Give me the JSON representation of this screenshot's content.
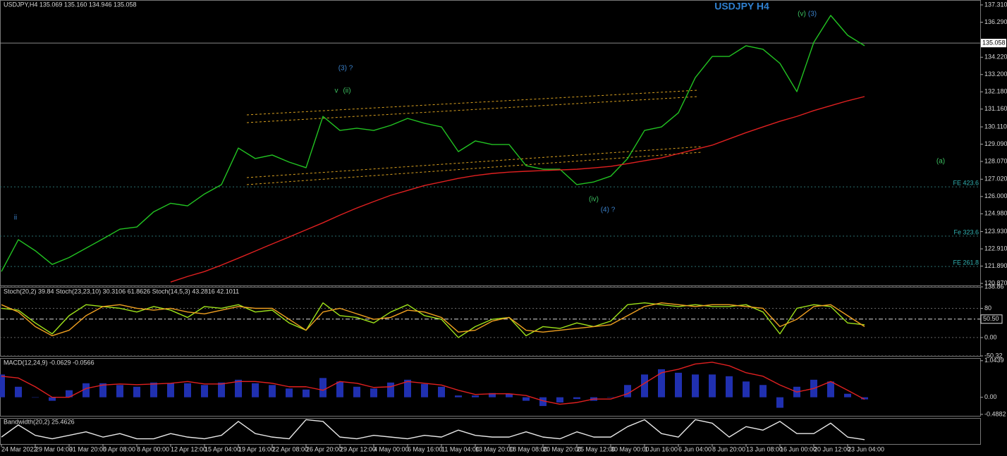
{
  "chart_data": [
    {
      "type": "line",
      "title": "USDJPY H4",
      "subtitle": "USDJPY,H4  135.069 135.160 134.946 135.058",
      "categories": [
        "24 Mar 2022",
        null,
        "29 Mar 04:00",
        null,
        "31 Mar 20:00",
        null,
        "5 Apr 08:00",
        null,
        "8 Apr 00:00",
        null,
        "12 Apr 12:00",
        null,
        "15 Apr 04:00",
        null,
        "19 Apr 16:00",
        null,
        "22 Apr 08:00",
        null,
        "26 Apr 20:00",
        null,
        "29 Apr 12:00",
        null,
        "4 May 00:00",
        null,
        "6 May 16:00",
        null,
        "11 May 04:00",
        null,
        "13 May 20:00",
        null,
        "18 May 08:00",
        null,
        "20 May 20:00",
        null,
        "25 May 12:00",
        null,
        "30 May 00:00",
        null,
        "1 Jun 16:00",
        null,
        "6 Jun 04:00",
        null,
        "8 Jun 20:00",
        null,
        "13 Jun 08:00",
        null,
        "16 Jun 00:00",
        null,
        "20 Jun 12:00",
        null,
        "23 Jun 04:00",
        null
      ],
      "series": [
        {
          "color": "#22c322",
          "kind": "line",
          "values": [
            121.57,
            123.45,
            122.8,
            121.99,
            122.4,
            122.95,
            123.5,
            124.07,
            124.2,
            125.1,
            125.6,
            125.45,
            126.15,
            126.7,
            128.86,
            128.24,
            128.45,
            128.03,
            127.7,
            130.73,
            129.9,
            130.03,
            129.9,
            130.2,
            130.61,
            130.32,
            130.11,
            128.65,
            129.28,
            129.07,
            129.07,
            127.82,
            127.61,
            127.61,
            126.7,
            126.86,
            127.2,
            128.24,
            129.9,
            130.11,
            130.94,
            133.02,
            134.27,
            134.27,
            134.9,
            134.69,
            133.86,
            132.19,
            135.1,
            136.69,
            135.52,
            134.9
          ]
        },
        {
          "color": "#e02020",
          "kind": "line",
          "values": [
            null,
            null,
            null,
            null,
            null,
            null,
            null,
            null,
            null,
            null,
            120.95,
            121.28,
            121.57,
            121.95,
            122.36,
            122.78,
            123.2,
            123.61,
            124.03,
            124.45,
            124.9,
            125.32,
            125.7,
            126.07,
            126.36,
            126.65,
            126.86,
            127.07,
            127.24,
            127.36,
            127.44,
            127.49,
            127.53,
            127.57,
            127.61,
            127.69,
            127.78,
            127.94,
            128.11,
            128.28,
            128.53,
            128.78,
            129.03,
            129.4,
            129.77,
            130.11,
            130.44,
            130.73,
            131.07,
            131.36,
            131.65,
            131.9
          ]
        }
      ],
      "ylim": [
        120.75,
        137.6
      ],
      "yticks": [
        {
          "value": 137.31,
          "label": "137.310"
        },
        {
          "value": 136.29,
          "label": "136.290"
        },
        {
          "value": 134.22,
          "label": "134.220"
        },
        {
          "value": 133.2,
          "label": "133.200"
        },
        {
          "value": 132.18,
          "label": "132.180"
        },
        {
          "value": 131.16,
          "label": "131.160"
        },
        {
          "value": 130.11,
          "label": "130.110"
        },
        {
          "value": 129.09,
          "label": "129.090"
        },
        {
          "value": 128.07,
          "label": "128.070"
        },
        {
          "value": 127.02,
          "label": "127.020"
        },
        {
          "value": 126.0,
          "label": "126.000"
        },
        {
          "value": 124.98,
          "label": "124.980"
        },
        {
          "value": 123.93,
          "label": "123.930"
        },
        {
          "value": 122.91,
          "label": "122.910"
        },
        {
          "value": 121.89,
          "label": "121.890"
        },
        {
          "value": 120.87,
          "label": "120.870"
        }
      ],
      "price_line": 135.058,
      "levels": [
        {
          "label": "FE 423.6",
          "value": 126.57
        },
        {
          "label": "Fe 323.6",
          "value": 123.66
        },
        {
          "label": "FE 261.8",
          "value": 121.87
        }
      ],
      "annotations": [
        "(3) ?",
        "v",
        "(ii)",
        "(v)",
        "(3)",
        "(iv)",
        "(4) ?",
        "(a)",
        "ii"
      ]
    },
    {
      "type": "line",
      "header": "Stoch(20,2) 39.84  Stoch(23,23,10) 30.3106 61.8626  Stoch(14,5,3) 43.2816 42.1011",
      "series": [
        {
          "color": "#9ee21a",
          "kind": "line",
          "values": [
            80,
            75,
            40,
            10,
            60,
            90,
            85,
            80,
            70,
            85,
            75,
            55,
            85,
            80,
            90,
            70,
            75,
            40,
            20,
            95,
            60,
            55,
            40,
            70,
            90,
            60,
            50,
            0,
            30,
            50,
            55,
            5,
            30,
            25,
            40,
            30,
            45,
            90,
            95,
            90,
            85,
            90,
            85,
            85,
            90,
            70,
            10,
            80,
            90,
            85,
            40,
            35
          ]
        },
        {
          "color": "#f0a020",
          "kind": "line",
          "values": [
            90,
            70,
            30,
            5,
            20,
            60,
            85,
            90,
            80,
            75,
            80,
            70,
            65,
            75,
            85,
            80,
            80,
            50,
            20,
            70,
            80,
            65,
            50,
            55,
            75,
            70,
            55,
            15,
            20,
            45,
            55,
            20,
            15,
            20,
            25,
            30,
            35,
            60,
            85,
            95,
            90,
            85,
            90,
            90,
            85,
            80,
            30,
            50,
            85,
            90,
            60,
            30
          ]
        }
      ],
      "ylim": [
        -50.32,
        138.86
      ],
      "yticks": [
        138.86,
        80,
        {
          "value": 0,
          "label": "0.00"
        },
        -50.32
      ],
      "current": {
        "value": 50.5,
        "label": "50.50"
      },
      "grid": true
    },
    {
      "type": "line",
      "header": "MACD(12,24,9) -0.0629 -0.0566",
      "series": [
        {
          "color": "#2030b0",
          "kind": "bar",
          "values": [
            0.65,
            0.3,
            0.0,
            -0.1,
            0.2,
            0.4,
            0.4,
            0.35,
            0.3,
            0.42,
            0.4,
            0.4,
            0.35,
            0.42,
            0.5,
            0.4,
            0.35,
            0.25,
            0.22,
            0.55,
            0.45,
            0.3,
            0.25,
            0.42,
            0.5,
            0.38,
            0.3,
            0.05,
            0.05,
            0.12,
            0.1,
            -0.1,
            -0.25,
            -0.15,
            -0.05,
            -0.1,
            0.0,
            0.35,
            0.65,
            0.8,
            0.7,
            0.65,
            0.65,
            0.6,
            0.45,
            0.35,
            -0.3,
            0.3,
            0.5,
            0.45,
            0.1,
            -0.06
          ]
        },
        {
          "color": "#e02020",
          "kind": "line",
          "values": [
            0.6,
            0.55,
            0.3,
            0.0,
            0.0,
            0.25,
            0.35,
            0.38,
            0.36,
            0.38,
            0.4,
            0.45,
            0.38,
            0.38,
            0.45,
            0.45,
            0.4,
            0.3,
            0.3,
            0.2,
            0.45,
            0.4,
            0.28,
            0.3,
            0.45,
            0.4,
            0.35,
            0.2,
            0.08,
            0.1,
            0.1,
            0.05,
            -0.1,
            -0.2,
            -0.15,
            -0.05,
            -0.05,
            0.1,
            0.4,
            0.7,
            0.8,
            0.95,
            1.0,
            0.9,
            0.7,
            0.6,
            0.35,
            0.15,
            0.25,
            0.45,
            0.2,
            -0.06
          ]
        }
      ],
      "ylim": [
        -0.53,
        1.12
      ],
      "yticks": [
        1.0439,
        {
          "value": 0,
          "label": "0.00"
        },
        -0.4882
      ]
    },
    {
      "type": "line",
      "header": "Bandwidth(20,2) 25.4626",
      "series": [
        {
          "color": "#e8e8e8",
          "kind": "line",
          "values": [
            40,
            110,
            50,
            30,
            50,
            70,
            40,
            60,
            30,
            30,
            60,
            40,
            30,
            50,
            130,
            60,
            40,
            30,
            140,
            130,
            40,
            30,
            50,
            40,
            30,
            50,
            40,
            80,
            50,
            40,
            40,
            70,
            40,
            30,
            70,
            40,
            40,
            100,
            140,
            60,
            40,
            140,
            120,
            40,
            100,
            80,
            130,
            60,
            60,
            120,
            40,
            25
          ]
        }
      ],
      "ylim": [
        0,
        150
      ],
      "yticks": []
    }
  ]
}
